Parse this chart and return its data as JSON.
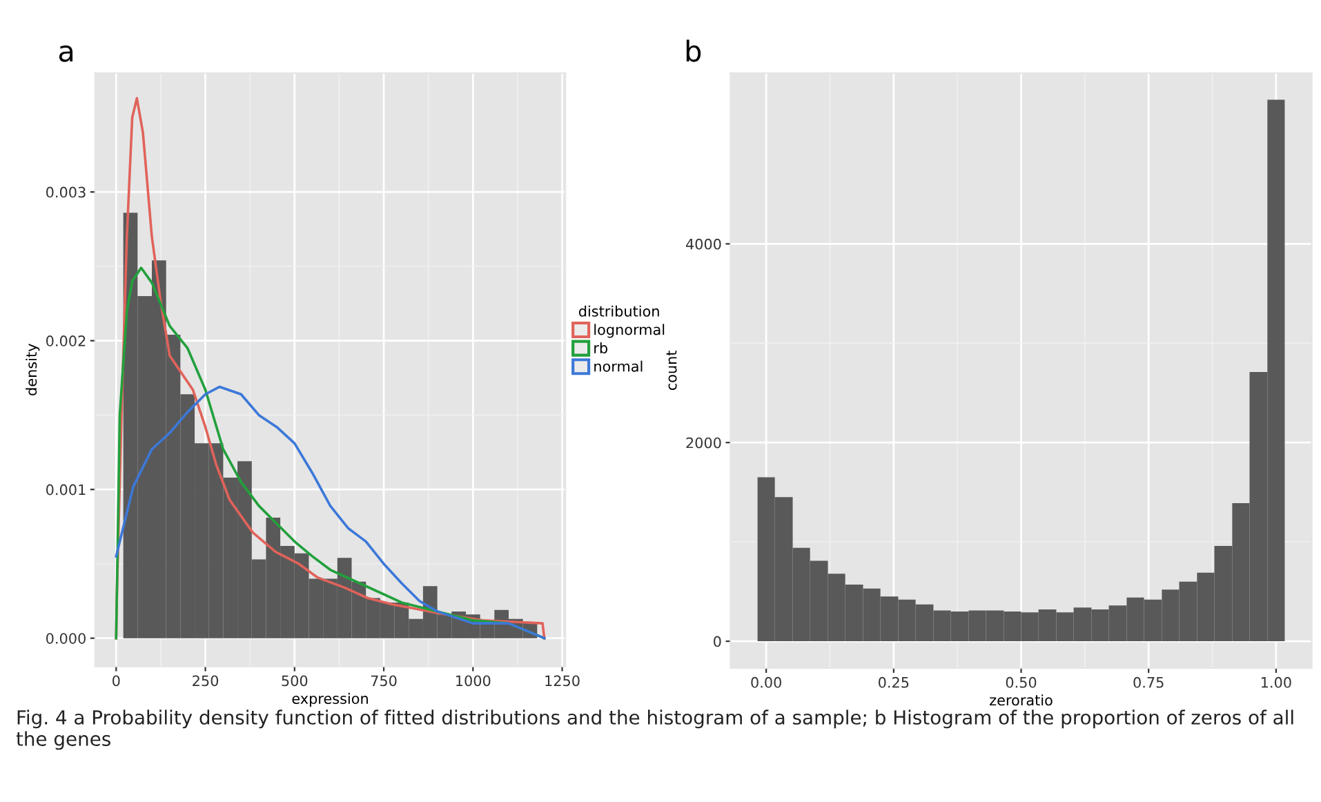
{
  "chart_data": [
    {
      "type": "histogram",
      "title": "a",
      "xlabel": "expression",
      "ylabel": "density",
      "legend_title": "distribution",
      "legend": "right",
      "grid": true,
      "bins": [
        20,
        60,
        100,
        140,
        180,
        220,
        260,
        300,
        340,
        380,
        420,
        460,
        500,
        540,
        580,
        620,
        660,
        700,
        740,
        780,
        820,
        860,
        900,
        940,
        980,
        1020,
        1060,
        1100,
        1140,
        1180
      ],
      "values": [
        0.00286,
        0.0023,
        0.00254,
        0.00204,
        0.00164,
        0.00131,
        0.00131,
        0.00108,
        0.00119,
        0.00053,
        0.00081,
        0.00062,
        0.00057,
        0.0004,
        0.0004,
        0.00054,
        0.00038,
        0.00027,
        0.00024,
        0.00024,
        0.00013,
        0.00035,
        0.00016,
        0.00018,
        0.00016,
        0.00012,
        0.00019,
        0.00013,
        0.0001
      ],
      "color": "#595959",
      "xlim": [
        -59,
        1259
      ],
      "ylim": [
        -0.00019,
        0.0038
      ],
      "xticks": [
        0,
        250,
        500,
        750,
        1000,
        1250
      ],
      "yticks": [
        {
          "value": 0,
          "label": "0.000"
        },
        {
          "value": 0.001,
          "label": "0.001"
        },
        {
          "value": 0.002,
          "label": "0.002"
        },
        {
          "value": 0.003,
          "label": "0.003"
        }
      ],
      "series": [
        {
          "type": "line",
          "name": "lognormal",
          "color": "#e0635a",
          "x": [
            0,
            2,
            15,
            30,
            45,
            58,
            75,
            100,
            125,
            150,
            215,
            250,
            280,
            318,
            383,
            447,
            512,
            563,
            640,
            705,
            769,
            834,
            898,
            1027,
            1195,
            1200
          ],
          "values": [
            0,
            0.0003,
            0.0015,
            0.0027,
            0.0035,
            0.00363,
            0.0034,
            0.0027,
            0.00226,
            0.0019,
            0.00167,
            0.00142,
            0.00117,
            0.00093,
            0.00071,
            0.00058,
            0.0005,
            0.00041,
            0.00034,
            0.00027,
            0.00023,
            0.0002,
            0.00017,
            0.00012,
            0.0001,
            0
          ]
        },
        {
          "type": "line",
          "name": "rb",
          "color": "#22a03c",
          "x": [
            0,
            10,
            30,
            45,
            70,
            100,
            150,
            200,
            250,
            300,
            350,
            400,
            450,
            500,
            550,
            600,
            700,
            800,
            900,
            1000,
            1100,
            1200
          ],
          "values": [
            0,
            0.0015,
            0.0022,
            0.0024,
            0.00249,
            0.00239,
            0.0021,
            0.00195,
            0.00167,
            0.00127,
            0.00105,
            0.00089,
            0.00077,
            0.00065,
            0.00055,
            0.00046,
            0.00035,
            0.00024,
            0.00018,
            0.00012,
            0.0001,
            0
          ]
        },
        {
          "type": "line",
          "name": "normal",
          "color": "#3c78d8",
          "x": [
            0,
            48,
            100,
            150,
            200,
            250,
            290,
            350,
            400,
            450,
            500,
            550,
            600,
            650,
            700,
            750,
            800,
            850,
            900,
            1000,
            1100,
            1200
          ],
          "values": [
            0.00055,
            0.00102,
            0.00127,
            0.00138,
            0.00152,
            0.00164,
            0.00169,
            0.00164,
            0.0015,
            0.00142,
            0.00131,
            0.00111,
            0.00089,
            0.00074,
            0.00065,
            0.0005,
            0.00037,
            0.00025,
            0.00018,
            0.0001,
            0.0001,
            0
          ]
        }
      ],
      "annotations": [
        "Fig. 4 a Probability density function of fitted distributions and the histogram of a sample; b Histogram of the proportion of zeros of all the genes"
      ]
    },
    {
      "type": "histogram",
      "title": "b",
      "xlabel": "zeroratio",
      "ylabel": "count",
      "grid": true,
      "bins": [
        -0.017,
        0.017,
        0.052,
        0.086,
        0.121,
        0.155,
        0.19,
        0.224,
        0.259,
        0.293,
        0.328,
        0.362,
        0.397,
        0.431,
        0.466,
        0.5,
        0.534,
        0.569,
        0.603,
        0.638,
        0.672,
        0.707,
        0.741,
        0.776,
        0.81,
        0.845,
        0.879,
        0.914,
        0.948,
        0.983,
        1.017
      ],
      "values": [
        1650,
        1450,
        940,
        810,
        680,
        570,
        530,
        450,
        420,
        370,
        310,
        300,
        310,
        310,
        300,
        290,
        320,
        290,
        340,
        320,
        360,
        440,
        420,
        520,
        600,
        690,
        960,
        1390,
        2710,
        5450
      ],
      "color": "#595959",
      "xlim": [
        -0.07,
        1.07
      ],
      "ylim": [
        -270,
        5720
      ],
      "xticks": [
        {
          "value": 0,
          "label": "0.00"
        },
        {
          "value": 0.25,
          "label": "0.25"
        },
        {
          "value": 0.5,
          "label": "0.50"
        },
        {
          "value": 0.75,
          "label": "0.75"
        },
        {
          "value": 1,
          "label": "1.00"
        }
      ],
      "yticks": [
        0,
        2000,
        4000
      ]
    }
  ]
}
